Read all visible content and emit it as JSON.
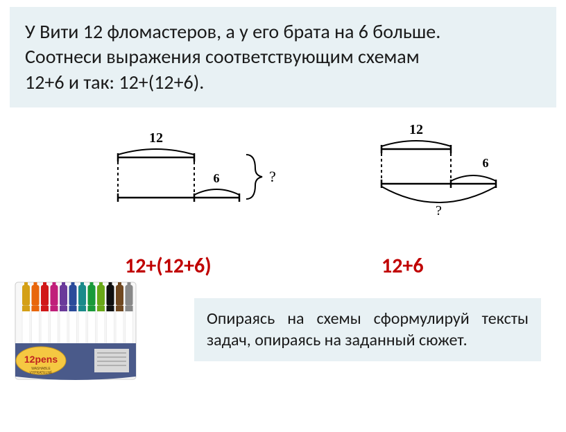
{
  "problem": {
    "line1": "У Вити 12 фломастеров, а у его брата на 6 больше.",
    "line2": "Соотнеси выражения соответствующим схемам",
    "line3": "12+6   и так: 12+(12+6)."
  },
  "diagram_left": {
    "top_label": "12",
    "bottom_label": "6",
    "question": "?",
    "stroke": "#000000",
    "stroke_width": 2
  },
  "diagram_right": {
    "top_label": "12",
    "small_label": "6",
    "question": "?",
    "stroke": "#000000",
    "stroke_width": 2
  },
  "answers": {
    "left": "12+(12+6)",
    "right": "12+6",
    "color": "#c00000"
  },
  "task": {
    "text": "Опираясь на схемы сформулируй тексты задач, опираясь на заданный сюжет."
  },
  "pens": {
    "brand_top": "12pens",
    "brand_small1": "WASHABLE",
    "brand_small2": "VYPRATELNÉ",
    "case_color": "#4a5a8a",
    "label_color": "#f5c842",
    "colors": [
      "#d4a017",
      "#e8660c",
      "#d01818",
      "#c01f7a",
      "#6a3a9a",
      "#2a4a9a",
      "#1a8a8a",
      "#1a9a3a",
      "#6aa818",
      "#101010",
      "#704820",
      "#888888"
    ]
  },
  "colors": {
    "box_bg": "#e8f1f4",
    "text": "#1a1a1a",
    "answer": "#c00000"
  }
}
